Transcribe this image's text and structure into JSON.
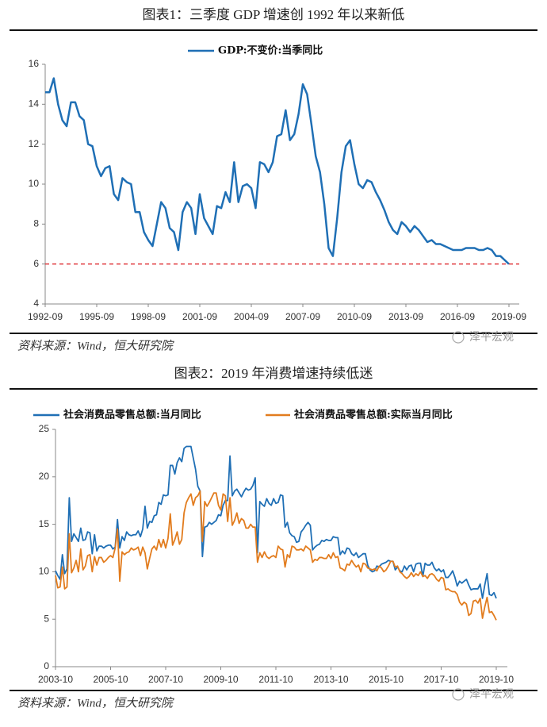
{
  "chart_data": [
    {
      "type": "line",
      "title": "图表1：三季度 GDP 增速创 1992 年以来新低",
      "categories": [
        "1992-09",
        null,
        null,
        null,
        null,
        null,
        null,
        null,
        null,
        null,
        null,
        null,
        "1995-09",
        null,
        null,
        null,
        null,
        null,
        null,
        null,
        null,
        null,
        null,
        null,
        "1998-09",
        null,
        null,
        null,
        null,
        null,
        null,
        null,
        null,
        null,
        null,
        null,
        "2001-09",
        null,
        null,
        null,
        null,
        null,
        null,
        null,
        null,
        null,
        null,
        null,
        "2004-09",
        null,
        null,
        null,
        null,
        null,
        null,
        null,
        null,
        null,
        null,
        null,
        "2007-09",
        null,
        null,
        null,
        null,
        null,
        null,
        null,
        null,
        null,
        null,
        null,
        "2010-09",
        null,
        null,
        null,
        null,
        null,
        null,
        null,
        null,
        null,
        null,
        null,
        "2013-09",
        null,
        null,
        null,
        null,
        null,
        null,
        null,
        null,
        null,
        null,
        null,
        "2016-09",
        null,
        null,
        null,
        null,
        null,
        null,
        null,
        null,
        null,
        null,
        null,
        "2019-09"
      ],
      "series": [
        {
          "name": "GDP:不变价:当季同比",
          "color": "#1f6fb5",
          "values": [
            14.6,
            14.6,
            15.3,
            14.0,
            13.2,
            12.9,
            14.1,
            14.1,
            13.4,
            13.2,
            12.0,
            11.9,
            10.9,
            10.4,
            10.8,
            10.9,
            9.5,
            9.2,
            10.3,
            10.1,
            10.0,
            8.6,
            8.6,
            7.6,
            7.2,
            6.9,
            8.0,
            9.1,
            8.8,
            7.8,
            7.6,
            6.7,
            8.6,
            9.1,
            8.8,
            7.5,
            9.5,
            8.3,
            7.9,
            7.5,
            8.9,
            8.8,
            9.6,
            9.1,
            11.1,
            9.1,
            9.9,
            10.0,
            9.8,
            8.8,
            11.1,
            11.0,
            10.6,
            11.1,
            12.4,
            12.5,
            13.7,
            12.2,
            12.5,
            13.5,
            15.0,
            14.5,
            13.0,
            11.4,
            10.6,
            9.0,
            6.8,
            6.4,
            8.3,
            10.6,
            11.9,
            12.2,
            11.0,
            10.0,
            9.8,
            10.2,
            10.1,
            9.6,
            9.2,
            8.7,
            8.1,
            7.7,
            7.5,
            8.1,
            7.9,
            7.6,
            7.9,
            7.7,
            7.4,
            7.1,
            7.2,
            7.0,
            7.0,
            6.9,
            6.8,
            6.7,
            6.7,
            6.7,
            6.8,
            6.8,
            6.8,
            6.7,
            6.7,
            6.8,
            6.7,
            6.4,
            6.4,
            6.2,
            6.0
          ]
        }
      ],
      "ylim": [
        4,
        16
      ],
      "yticks": [
        4,
        6,
        8,
        10,
        12,
        14,
        16
      ],
      "reference_line": {
        "value": 6,
        "color": "#e0393e"
      },
      "legend": "top",
      "source": "资料来源：Wind，恒大研究院",
      "watermark": "泽平宏观"
    },
    {
      "type": "line",
      "title": "图表2：2019 年消费增速持续低迷",
      "categories": [
        "2003-10",
        null,
        null,
        null,
        null,
        null,
        null,
        null,
        null,
        null,
        null,
        null,
        null,
        null,
        null,
        null,
        null,
        null,
        null,
        null,
        null,
        null,
        null,
        null,
        "2005-10",
        null,
        null,
        null,
        null,
        null,
        null,
        null,
        null,
        null,
        null,
        null,
        null,
        null,
        null,
        null,
        null,
        null,
        null,
        null,
        null,
        null,
        null,
        null,
        "2007-10",
        null,
        null,
        null,
        null,
        null,
        null,
        null,
        null,
        null,
        null,
        null,
        null,
        null,
        null,
        null,
        null,
        null,
        null,
        null,
        null,
        null,
        null,
        null,
        "2009-10",
        null,
        null,
        null,
        null,
        null,
        null,
        null,
        null,
        null,
        null,
        null,
        null,
        null,
        null,
        null,
        null,
        null,
        null,
        null,
        null,
        null,
        null,
        null,
        "2011-10",
        null,
        null,
        null,
        null,
        null,
        null,
        null,
        null,
        null,
        null,
        null,
        null,
        null,
        null,
        null,
        null,
        null,
        null,
        null,
        null,
        null,
        null,
        null,
        "2013-10",
        null,
        null,
        null,
        null,
        null,
        null,
        null,
        null,
        null,
        null,
        null,
        null,
        null,
        null,
        null,
        null,
        null,
        null,
        null,
        null,
        null,
        null,
        null,
        "2015-10",
        null,
        null,
        null,
        null,
        null,
        null,
        null,
        null,
        null,
        null,
        null,
        null,
        null,
        null,
        null,
        null,
        null,
        null,
        null,
        null,
        null,
        null,
        null,
        "2017-10",
        null,
        null,
        null,
        null,
        null,
        null,
        null,
        null,
        null,
        null,
        null,
        null,
        null,
        null,
        null,
        null,
        null,
        null,
        null,
        null,
        null,
        null,
        null,
        "2019-10"
      ],
      "series": [
        {
          "name": "社会消费品零售总额:当月同比",
          "color": "#1f6fb5",
          "values": [
            10.1,
            9.6,
            9.2,
            11.8,
            9.8,
            10.3,
            17.8,
            13.2,
            14.0,
            13.6,
            13.2,
            14.6,
            13.3,
            13.4,
            14.2,
            14.1,
            11.9,
            13.9,
            12.2,
            12.7,
            12.7,
            12.5,
            12.7,
            12.8,
            12.8,
            12.4,
            12.6,
            15.5,
            12.5,
            13.7,
            13.3,
            14.2,
            13.9,
            13.8,
            13.9,
            13.9,
            14.3,
            13.7,
            14.5,
            16.9,
            14.6,
            15.3,
            15.2,
            15.9,
            16.0,
            17.3,
            17.1,
            18.1,
            18.0,
            18.1,
            21.2,
            21.2,
            20.3,
            21.5,
            22.0,
            21.6,
            23.0,
            23.2,
            23.2,
            23.2,
            22.0,
            20.8,
            19.0,
            18.5,
            11.6,
            14.7,
            14.8,
            15.2,
            15.0,
            15.2,
            15.4,
            16.0,
            15.9,
            17.0,
            17.5,
            17.5,
            22.2,
            18.0,
            18.5,
            18.7,
            18.3,
            17.9,
            18.4,
            18.8,
            18.6,
            18.7,
            19.1,
            19.9,
            12.0,
            17.4,
            17.1,
            16.9,
            17.7,
            17.2,
            17.0,
            17.7,
            17.2,
            17.3,
            18.1,
            18.0,
            14.7,
            15.2,
            14.1,
            13.8,
            13.7,
            13.1,
            13.2,
            14.2,
            14.5,
            14.9,
            15.2,
            14.9,
            12.3,
            12.6,
            12.8,
            12.9,
            13.3,
            13.2,
            13.4,
            13.3,
            13.3,
            13.7,
            13.6,
            13.6,
            11.8,
            12.2,
            11.9,
            12.5,
            12.4,
            11.9,
            11.7,
            12.0,
            11.5,
            11.7,
            11.9,
            11.9,
            10.7,
            10.2,
            10.0,
            10.1,
            10.6,
            10.5,
            10.8,
            10.9,
            11.0,
            11.2,
            11.1,
            11.1,
            10.2,
            10.5,
            10.1,
            10.0,
            10.6,
            10.2,
            10.6,
            10.7,
            10.0,
            10.8,
            10.9,
            10.9,
            9.5,
            10.9,
            10.7,
            10.7,
            11.0,
            10.4,
            10.1,
            10.3,
            10.0,
            10.2,
            9.4,
            9.4,
            9.7,
            10.1,
            9.4,
            8.5,
            9.0,
            8.8,
            9.0,
            9.2,
            8.6,
            8.1,
            8.2,
            8.2,
            8.2,
            8.7,
            7.2,
            8.6,
            9.8,
            7.6,
            7.5,
            7.8,
            7.2
          ]
        },
        {
          "name": "社会消费品零售总额:实际当月同比",
          "color": "#e27c1e",
          "values": [
            9.6,
            8.3,
            8.4,
            10.5,
            8.2,
            8.4,
            14.0,
            9.9,
            10.4,
            11.2,
            10.0,
            12.4,
            10.2,
            10.6,
            11.7,
            11.8,
            10.0,
            11.6,
            10.7,
            11.5,
            11.5,
            11.0,
            11.2,
            11.5,
            11.7,
            11.5,
            12.5,
            14.5,
            9.0,
            12.1,
            11.8,
            12.0,
            12.1,
            12.5,
            12.3,
            12.4,
            12.6,
            11.7,
            12.6,
            12.0,
            10.3,
            11.4,
            12.4,
            12.7,
            12.3,
            13.4,
            12.6,
            13.4,
            12.5,
            13.5,
            16.1,
            12.8,
            13.4,
            14.2,
            12.9,
            13.4,
            16.2,
            17.3,
            17.8,
            18.2,
            17.0,
            17.8,
            18.0,
            18.5,
            13.2,
            17.4,
            16.9,
            17.3,
            17.8,
            18.3,
            18.3,
            17.0,
            16.5,
            18.2,
            18.0,
            15.3,
            17.8,
            14.9,
            15.4,
            16.2,
            15.1,
            15.6,
            15.4,
            14.6,
            14.6,
            15.0,
            14.7,
            14.7,
            11.0,
            12.0,
            11.5,
            12.1,
            11.6,
            11.4,
            11.6,
            11.7,
            11.5,
            12.7,
            12.4,
            12.3,
            10.5,
            11.8,
            11.5,
            12.7,
            12.6,
            12.3,
            12.3,
            12.4,
            12.2,
            12.7,
            12.5,
            12.3,
            11.0,
            11.3,
            11.2,
            11.5,
            11.5,
            11.4,
            11.4,
            11.8,
            11.4,
            12.0,
            11.5,
            11.6,
            10.4,
            10.3,
            10.1,
            10.8,
            10.7,
            11.2,
            10.8,
            10.5,
            10.7,
            10.0,
            10.9,
            10.8,
            10.4,
            10.3,
            10.2,
            10.3,
            10.1,
            10.6,
            10.4,
            10.0,
            10.2,
            10.6,
            11.1,
            11.1,
            10.5,
            10.6,
            10.0,
            9.8,
            9.5,
            9.3,
            9.5,
            9.9,
            9.5,
            9.8,
            9.6,
            10.0,
            9.5,
            9.6,
            9.3,
            9.7,
            9.8,
            9.6,
            9.2,
            9.0,
            9.4,
            9.3,
            8.1,
            8.2,
            8.0,
            7.9,
            7.9,
            7.6,
            6.8,
            6.5,
            6.8,
            6.6,
            5.4,
            5.6,
            6.9,
            7.0,
            6.7,
            7.2,
            5.1,
            6.3,
            7.3,
            5.7,
            5.8,
            5.4,
            4.9
          ]
        }
      ],
      "ylim": [
        0,
        25
      ],
      "yticks": [
        0,
        5,
        10,
        15,
        20,
        25
      ],
      "legend": "top",
      "source": "资料来源：Wind，恒大研究院",
      "watermark": "泽平宏观"
    }
  ]
}
